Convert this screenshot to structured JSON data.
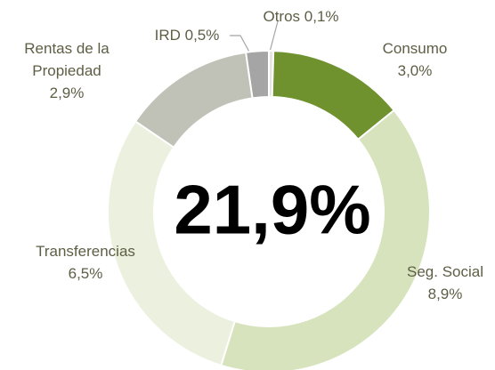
{
  "chart_data": {
    "type": "donut",
    "center_label": "21,9%",
    "categories": [
      "Otros",
      "Consumo",
      "Seg. Social",
      "Transferencias",
      "Rentas de la Propiedad",
      "IRD"
    ],
    "values": [
      0.1,
      3.0,
      8.9,
      6.5,
      2.9,
      0.5
    ],
    "value_labels": [
      "0,1%",
      "3,0%",
      "8,9%",
      "6,5%",
      "2,9%",
      "0,5%"
    ],
    "colors": [
      "#e4e4e0",
      "#6f922f",
      "#d7e3bd",
      "#ebf1de",
      "#c0c2b8",
      "#a5a5a5"
    ]
  }
}
